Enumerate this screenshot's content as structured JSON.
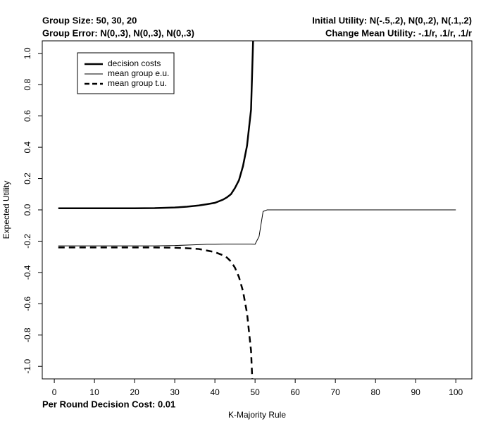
{
  "chart_data": {
    "type": "line",
    "header_left": [
      "Group Size: 50, 30, 20",
      "Group Error: N(0,.3), N(0,.3), N(0,.3)"
    ],
    "header_right": [
      "Initial Utility: N(-.5,.2), N(0,.2), N(.1,.2)",
      "Change Mean Utility: -.1/r, .1/r, .1/r"
    ],
    "footer_left": "Per Round Decision Cost: 0.01",
    "x_label": "K-Majority Rule",
    "y_label": "Expected Utility",
    "x": [
      1,
      5,
      10,
      15,
      20,
      25,
      30,
      33,
      36,
      38,
      40,
      42,
      43,
      44,
      45,
      46,
      47,
      48,
      49,
      50,
      51,
      52,
      53,
      55,
      60,
      70,
      80,
      90,
      100
    ],
    "series": [
      {
        "name": "decision costs",
        "color": "#000000",
        "width": 2.5,
        "dash": false,
        "values": [
          0.01,
          0.01,
          0.01,
          0.01,
          0.01,
          0.011,
          0.015,
          0.02,
          0.028,
          0.036,
          0.045,
          0.065,
          0.08,
          0.1,
          0.14,
          0.19,
          0.28,
          0.41,
          0.64,
          1.5,
          null,
          null,
          null,
          null,
          null,
          null,
          null,
          null,
          null
        ]
      },
      {
        "name": "mean group e.u.",
        "color": "#000000",
        "width": 1,
        "dash": false,
        "values": [
          -0.23,
          -0.23,
          -0.23,
          -0.23,
          -0.23,
          -0.23,
          -0.228,
          -0.225,
          -0.222,
          -0.22,
          -0.22,
          -0.219,
          -0.219,
          -0.219,
          -0.219,
          -0.219,
          -0.219,
          -0.219,
          -0.219,
          -0.22,
          -0.17,
          -0.01,
          0,
          0,
          0,
          0,
          0,
          0,
          0
        ]
      },
      {
        "name": "mean group t.u.",
        "color": "#000000",
        "width": 2.5,
        "dash": true,
        "values": [
          -0.24,
          -0.24,
          -0.24,
          -0.24,
          -0.24,
          -0.24,
          -0.242,
          -0.245,
          -0.25,
          -0.26,
          -0.27,
          -0.29,
          -0.305,
          -0.33,
          -0.37,
          -0.43,
          -0.52,
          -0.66,
          -0.9,
          -1.5,
          null,
          null,
          null,
          null,
          null,
          null,
          null,
          null,
          null
        ]
      }
    ],
    "xlim": [
      -3,
      104
    ],
    "xticks": [
      0,
      10,
      20,
      30,
      40,
      50,
      60,
      70,
      80,
      90,
      100
    ],
    "ylim": [
      -1.08,
      1.08
    ],
    "yticks": [
      {
        "value": -1,
        "label": "-1.0"
      },
      -0.8,
      -0.6,
      -0.4,
      -0.2,
      {
        "value": 0,
        "label": "0.0"
      },
      0.2,
      0.4,
      0.6,
      0.8,
      {
        "value": 1,
        "label": "1.0"
      }
    ],
    "legend": "top-left"
  }
}
